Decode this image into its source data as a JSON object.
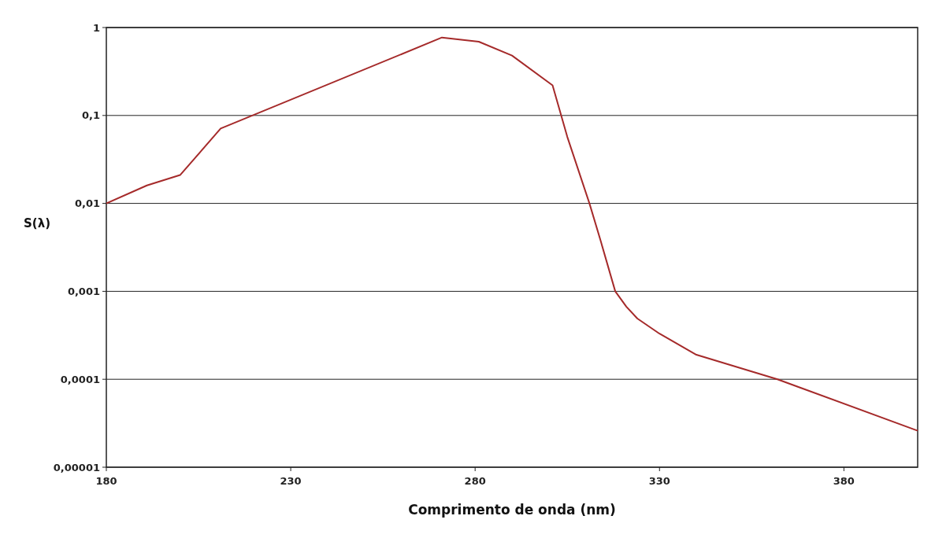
{
  "chart_data": {
    "type": "line",
    "xlabel": "Comprimento de onda (nm)",
    "ylabel": "S(λ)",
    "log": "y",
    "grid": "y",
    "xlim": [
      180,
      400
    ],
    "xticks": [
      180,
      230,
      280,
      330,
      380
    ],
    "ylim": [
      1e-05,
      1
    ],
    "yticks": [
      {
        "value": 1e-05,
        "label": "0,00001"
      },
      {
        "value": 0.0001,
        "label": "0,0001"
      },
      {
        "value": 0.001,
        "label": "0,001"
      },
      {
        "value": 0.01,
        "label": "0,01"
      },
      {
        "value": 0.1,
        "label": "0,1"
      },
      1
    ],
    "series": [
      {
        "color": "#a52a2a",
        "x": [
          180,
          191,
          200,
          211,
          271,
          281,
          290,
          301,
          305,
          311,
          314,
          318,
          321,
          324,
          330,
          340,
          362,
          400
        ],
        "values": [
          0.01,
          0.016,
          0.021,
          0.071,
          0.77,
          0.69,
          0.48,
          0.22,
          0.057,
          0.01,
          0.0038,
          0.001,
          0.00067,
          0.00049,
          0.00033,
          0.00019,
          0.0001,
          2.6e-05
        ]
      }
    ]
  }
}
